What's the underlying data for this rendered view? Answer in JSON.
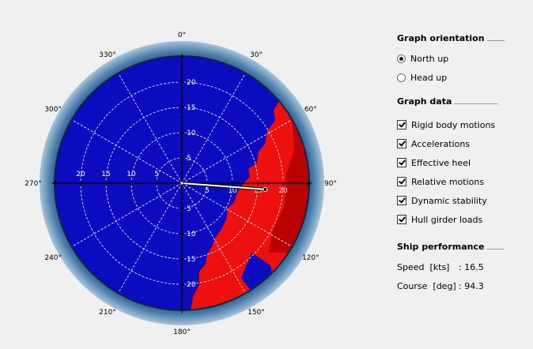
{
  "polar": {
    "compass_labels": [
      {
        "deg": 0,
        "label": "0°"
      },
      {
        "deg": 30,
        "label": "30°"
      },
      {
        "deg": 60,
        "label": "60°"
      },
      {
        "deg": 90,
        "label": "90°"
      },
      {
        "deg": 120,
        "label": "120°"
      },
      {
        "deg": 150,
        "label": "150°"
      },
      {
        "deg": 180,
        "label": "180°"
      },
      {
        "deg": 210,
        "label": "210°"
      },
      {
        "deg": 240,
        "label": "240°"
      },
      {
        "deg": 270,
        "label": "270°"
      },
      {
        "deg": 300,
        "label": "300°"
      },
      {
        "deg": 330,
        "label": "330°"
      }
    ],
    "speed_rings": [
      5,
      10,
      15,
      20
    ],
    "speed_max": 25,
    "colors": {
      "safe": "#0b0bbf",
      "danger": "#ee0f0f",
      "danger_dark": "#b80000",
      "bezel": "#3f6f98",
      "bezel_dark": "#1f4466",
      "vector": "#ffffff"
    },
    "ship_vector": {
      "speed": 16.5,
      "course": 94.3
    }
  },
  "orientation": {
    "title": "Graph orientation",
    "options": [
      {
        "label": "North up",
        "selected": true
      },
      {
        "label": "Head up",
        "selected": false
      }
    ]
  },
  "graph_data": {
    "title": "Graph data",
    "items": [
      {
        "label": "Rigid body motions",
        "checked": true
      },
      {
        "label": "Accelerations",
        "checked": true
      },
      {
        "label": "Effective heel",
        "checked": true
      },
      {
        "label": "Relative motions",
        "checked": true
      },
      {
        "label": "Dynamic stability",
        "checked": true
      },
      {
        "label": "Hull girder loads",
        "checked": true
      }
    ]
  },
  "performance": {
    "title": "Ship performance",
    "speed_label": "Speed  [kts]",
    "speed_value": ": 16.5",
    "course_label": "Course  [deg]",
    "course_value": ": 94.3"
  }
}
